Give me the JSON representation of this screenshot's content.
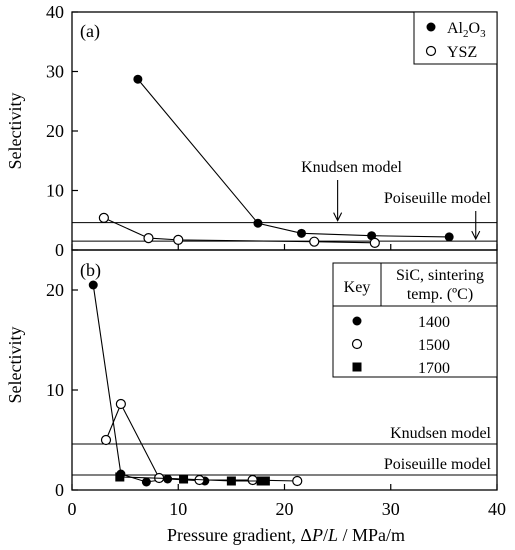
{
  "chart_data": [
    {
      "type": "line",
      "panel_label": "(a)",
      "xlim": [
        0,
        40
      ],
      "ylim": [
        0,
        40
      ],
      "xticks": [
        0,
        10,
        20,
        30,
        40
      ],
      "yticks": [
        0,
        10,
        20,
        30,
        40
      ],
      "ylabel": "Selectivity",
      "legend_position": "top-right",
      "series": [
        {
          "name_base": "Al",
          "name_sub1": "2",
          "name_mid": "O",
          "name_sub2": "3",
          "marker": "filled-circle",
          "x": [
            6.2,
            17.5,
            21.6,
            28.2,
            35.5
          ],
          "y": [
            28.7,
            4.5,
            2.8,
            2.4,
            2.2
          ]
        },
        {
          "name": "YSZ",
          "marker": "open-circle",
          "x": [
            3.0,
            7.2,
            10.0,
            22.8,
            28.5
          ],
          "y": [
            5.4,
            2.0,
            1.7,
            1.4,
            1.2
          ]
        }
      ],
      "reference_lines": [
        {
          "label": "Knudsen model",
          "y": 4.6,
          "arrow_x": 25
        },
        {
          "label": "Poiseuille model",
          "y": 1.5,
          "arrow_x": 38
        }
      ]
    },
    {
      "type": "line",
      "panel_label": "(b)",
      "xlim": [
        0,
        40
      ],
      "ylim": [
        0,
        24
      ],
      "xticks": [
        0,
        10,
        20,
        30,
        40
      ],
      "yticks": [
        0,
        10,
        20
      ],
      "xlabel_pre": "Pressure gradient, Δ",
      "xlabel_P": "P",
      "xlabel_slash": "/",
      "xlabel_L": "L",
      "xlabel_post": " / MPa/m",
      "ylabel": "Selectivity",
      "legend_title_key": "Key",
      "legend_title_line1": "SiC, sintering",
      "legend_title_line2": "temp. (ºC)",
      "legend_position": "top-right",
      "series": [
        {
          "name": "1400",
          "marker": "filled-circle",
          "x": [
            2.0,
            4.6,
            7.0,
            9.0,
            12.5
          ],
          "y": [
            20.5,
            1.6,
            0.8,
            1.1,
            0.9
          ]
        },
        {
          "name": "1500",
          "marker": "open-circle",
          "x": [
            3.2,
            4.6,
            8.2,
            12.0,
            17.0,
            21.2
          ],
          "y": [
            5.0,
            8.6,
            1.2,
            1.0,
            1.0,
            0.9
          ]
        },
        {
          "name": "1700",
          "marker": "filled-square",
          "x": [
            4.5,
            10.5,
            15.0,
            17.8,
            18.2
          ],
          "y": [
            1.3,
            1.1,
            0.9,
            0.9,
            0.9
          ]
        }
      ],
      "reference_lines": [
        {
          "label": "Knudsen model",
          "y": 4.6
        },
        {
          "label": "Poiseuille model",
          "y": 1.5
        }
      ]
    }
  ]
}
